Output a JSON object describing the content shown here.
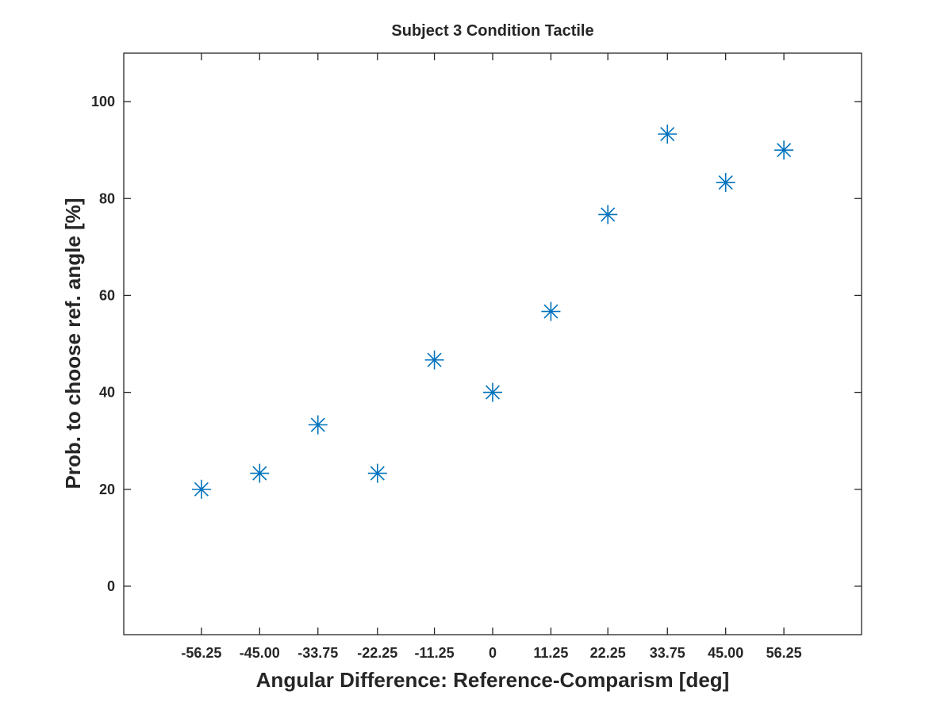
{
  "chart_data": {
    "type": "scatter",
    "title": "Subject 3 Condition Tactile",
    "xlabel": "Angular Difference: Reference-Comparism [deg]",
    "ylabel": "Prob. to choose ref. angle [%]",
    "xlim": [
      -71.25,
      71.25
    ],
    "ylim": [
      -10,
      110
    ],
    "x_ticks": [
      -56.25,
      -45.0,
      -33.75,
      -22.25,
      -11.25,
      0,
      11.25,
      22.25,
      33.75,
      45.0,
      56.25
    ],
    "x_tick_labels": [
      "-56.25",
      "-45.00",
      "-33.75",
      "-22.25",
      "-11.25",
      "0",
      "11.25",
      "22.25",
      "33.75",
      "45.00",
      "56.25"
    ],
    "y_ticks": [
      0,
      20,
      40,
      60,
      80,
      100
    ],
    "y_tick_labels": [
      "0",
      "20",
      "40",
      "60",
      "80",
      "100"
    ],
    "marker": "asterisk",
    "color": "#0072BD",
    "grid": false,
    "points": [
      {
        "x": -56.25,
        "y": 20.0
      },
      {
        "x": -45.0,
        "y": 23.3
      },
      {
        "x": -33.75,
        "y": 33.3
      },
      {
        "x": -22.25,
        "y": 23.3
      },
      {
        "x": -11.25,
        "y": 46.7
      },
      {
        "x": 0,
        "y": 40.0
      },
      {
        "x": 11.25,
        "y": 56.7
      },
      {
        "x": 22.25,
        "y": 76.7
      },
      {
        "x": 33.75,
        "y": 93.3
      },
      {
        "x": 45.0,
        "y": 83.3
      },
      {
        "x": 56.25,
        "y": 90.0
      }
    ]
  }
}
